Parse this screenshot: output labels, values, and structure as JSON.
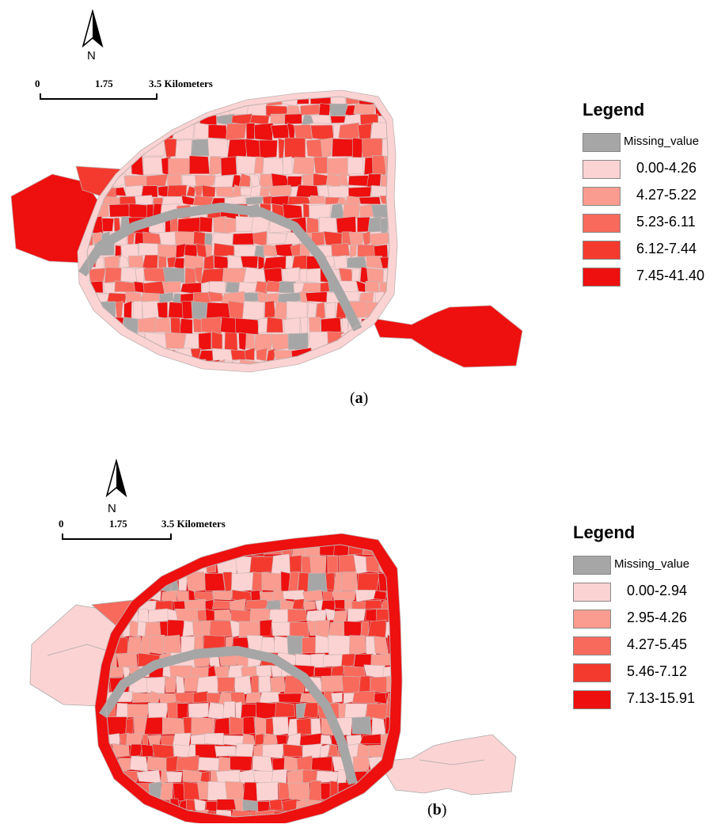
{
  "panels": [
    {
      "id": "a",
      "caption": "(a)",
      "caption_letter": "a",
      "north_label": "N",
      "scale": {
        "start": "0",
        "mid": "1.75",
        "end": "3.5 Kilometers"
      },
      "legend": {
        "title": "Legend",
        "items": [
          {
            "label": "Missing_value",
            "color": "#a6a6a6"
          },
          {
            "label": "0.00-4.26",
            "color": "#fcd3d3"
          },
          {
            "label": "4.27-5.22",
            "color": "#fa9c8f"
          },
          {
            "label": "5.23-6.11",
            "color": "#f86a5c"
          },
          {
            "label": "6.12-7.44",
            "color": "#f43a2f"
          },
          {
            "label": "7.45-41.40",
            "color": "#ee0f0f"
          }
        ]
      }
    },
    {
      "id": "b",
      "caption": "(b)",
      "caption_letter": "b",
      "north_label": "N",
      "scale": {
        "start": "0",
        "mid": "1.75",
        "end": "3.5 Kilometers"
      },
      "legend": {
        "title": "Legend",
        "items": [
          {
            "label": "Missing_value",
            "color": "#a6a6a6"
          },
          {
            "label": "0.00-2.94",
            "color": "#fcd3d3"
          },
          {
            "label": "2.95-4.26",
            "color": "#fa9c8f"
          },
          {
            "label": "4.27-5.45",
            "color": "#f86a5c"
          },
          {
            "label": "5.46-7.12",
            "color": "#f43a2f"
          },
          {
            "label": "7.13-15.91",
            "color": "#ee0f0f"
          }
        ]
      }
    }
  ]
}
